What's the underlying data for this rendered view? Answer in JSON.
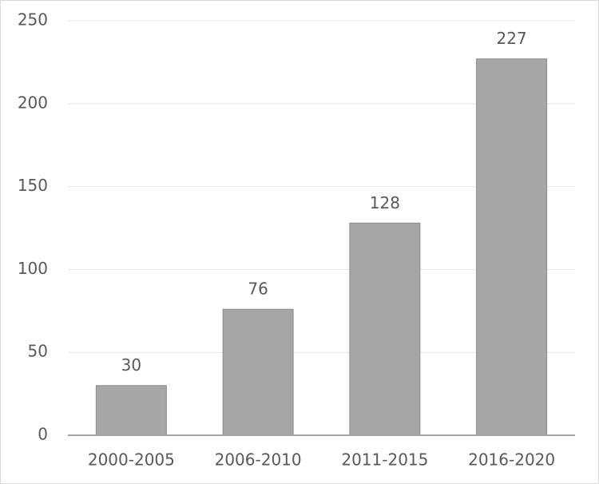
{
  "chart_data": {
    "type": "bar",
    "categories": [
      "2000-2005",
      "2006-2010",
      "2011-2015",
      "2016-2020"
    ],
    "values": [
      30,
      76,
      128,
      227
    ],
    "color": "#a6a6a6",
    "ylim": [
      0,
      250
    ],
    "yticks": [
      0,
      50,
      100,
      150,
      200,
      250
    ],
    "grid": true
  }
}
